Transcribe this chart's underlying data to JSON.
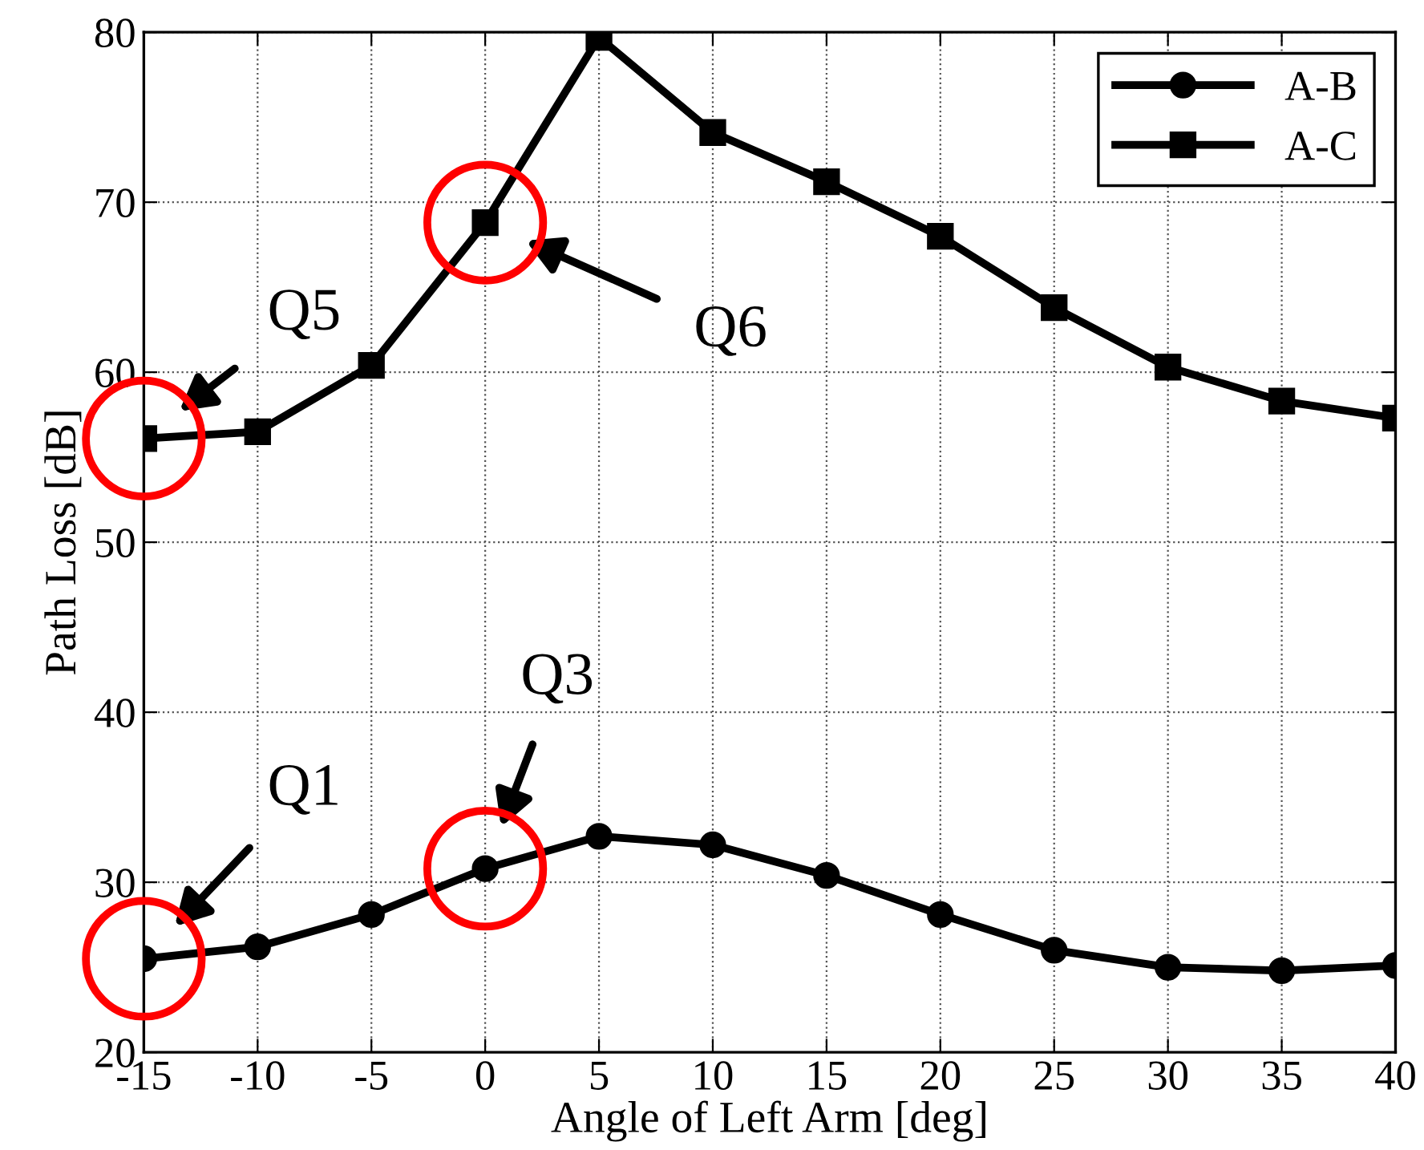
{
  "chart_data": {
    "type": "line",
    "xlabel": "Angle of Left Arm [deg]",
    "ylabel": "Path Loss [dB]",
    "x": [
      -15,
      -10,
      -5,
      0,
      5,
      10,
      15,
      20,
      25,
      30,
      35,
      40
    ],
    "series": [
      {
        "name": "A-B",
        "color": "#000000",
        "marker": "circle",
        "values": [
          25.5,
          26.2,
          28.1,
          30.8,
          32.7,
          32.2,
          30.4,
          28.1,
          26.0,
          25.0,
          24.8,
          25.1
        ]
      },
      {
        "name": "A-C",
        "color": "#000000",
        "marker": "square",
        "values": [
          56.1,
          56.5,
          60.4,
          68.8,
          79.7,
          74.1,
          71.2,
          68.0,
          63.8,
          60.3,
          58.3,
          57.3
        ]
      }
    ],
    "xlim": [
      -15,
      40
    ],
    "xticks": [
      -15,
      -10,
      -5,
      0,
      5,
      10,
      15,
      20,
      25,
      30,
      35,
      40
    ],
    "ylim": [
      20,
      80
    ],
    "yticks": [
      20,
      30,
      40,
      50,
      60,
      70,
      80
    ],
    "grid": true,
    "legend": "top right",
    "line_style": "solid",
    "annotations": [
      "Q1",
      "Q3",
      "Q5",
      "Q6"
    ]
  }
}
